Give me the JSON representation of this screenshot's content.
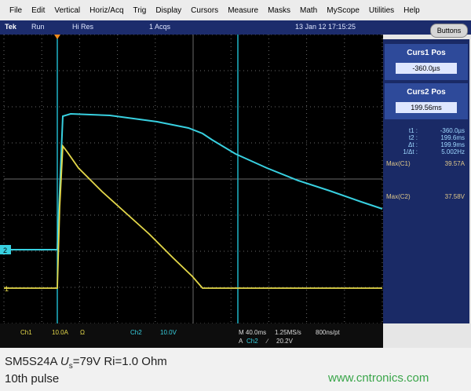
{
  "menu": [
    "File",
    "Edit",
    "Vertical",
    "Horiz/Acq",
    "Trig",
    "Display",
    "Cursors",
    "Measure",
    "Masks",
    "Math",
    "MyScope",
    "Utilities",
    "Help"
  ],
  "status": {
    "brand": "Tek",
    "state": "Run",
    "mode": "Hi Res",
    "acqs": "1 Acqs",
    "timestamp": "13 Jan 12 17:15:25",
    "button": "Buttons"
  },
  "cursors": [
    {
      "label": "Curs1 Pos",
      "value": "-360.0µs"
    },
    {
      "label": "Curs2 Pos",
      "value": "199.56ms"
    }
  ],
  "readouts": [
    {
      "label": "t1 :",
      "value": "-360.0µs"
    },
    {
      "label": "t2 :",
      "value": "199.6ms"
    },
    {
      "label": "Δt :",
      "value": "199.9ms"
    },
    {
      "label": "1/Δt :",
      "value": "5.002Hz"
    }
  ],
  "measurements": [
    {
      "label": "Max(C1)",
      "value": "39.57A"
    },
    {
      "label": "Max(C2)",
      "value": "37.58V"
    }
  ],
  "channel_markers": [
    "2",
    "1"
  ],
  "scope_footer": {
    "ch1": "Ch1",
    "ch1_scale": "10.0A",
    "ch1_unit": "Ω",
    "ch2": "Ch2",
    "ch2_scale": "10.0V",
    "timebase": "M 40.0ms",
    "sample_rate": "1.25MS/s",
    "resolution": "800ns/pt",
    "trigger_prefix": "A",
    "trigger_source": "Ch2",
    "trigger_slope": "∕",
    "trigger_level": "20.2V"
  },
  "caption": {
    "device": "SM5S24A",
    "symbol": "U",
    "subscript": "s",
    "conditions": "=79V Ri=1.0 Ohm",
    "pulse": "10th pulse"
  },
  "watermark": "www.cntronics.com"
}
